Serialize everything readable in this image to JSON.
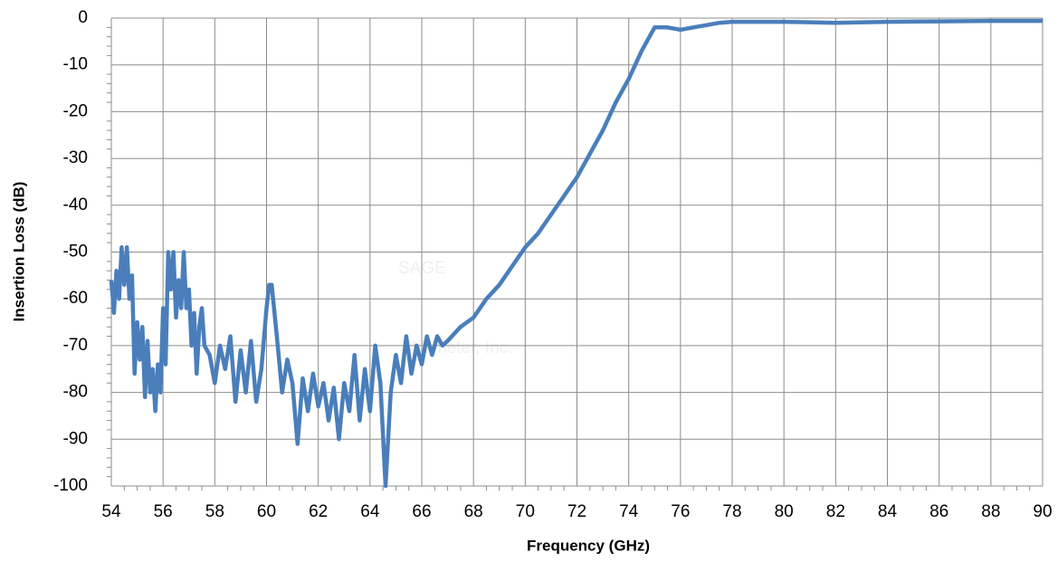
{
  "chart_data": {
    "type": "line",
    "xlabel": "Frequency (GHz)",
    "ylabel": "Insertion Loss (dB)",
    "watermark": [
      "SAGE",
      "Millimeter, Inc."
    ],
    "xlim": [
      54,
      90
    ],
    "xticks": [
      54,
      56,
      58,
      60,
      62,
      64,
      66,
      68,
      70,
      72,
      74,
      76,
      78,
      80,
      82,
      84,
      86,
      88,
      90
    ],
    "ylim": [
      -100,
      0
    ],
    "yticks": [
      0,
      -10,
      -20,
      -30,
      -40,
      -50,
      -60,
      -70,
      -80,
      -90,
      -100
    ],
    "grid": true,
    "series": [
      {
        "color": "#4a7ebb",
        "x": [
          54.0,
          54.1,
          54.2,
          54.3,
          54.4,
          54.5,
          54.6,
          54.7,
          54.8,
          54.9,
          55.0,
          55.1,
          55.2,
          55.3,
          55.4,
          55.5,
          55.6,
          55.7,
          55.8,
          55.9,
          56.0,
          56.1,
          56.2,
          56.3,
          56.4,
          56.5,
          56.6,
          56.7,
          56.8,
          56.9,
          57.0,
          57.1,
          57.2,
          57.3,
          57.4,
          57.5,
          57.6,
          57.8,
          58.0,
          58.2,
          58.4,
          58.6,
          58.8,
          59.0,
          59.2,
          59.4,
          59.6,
          59.8,
          60.0,
          60.1,
          60.2,
          60.4,
          60.6,
          60.8,
          61.0,
          61.2,
          61.4,
          61.6,
          61.8,
          62.0,
          62.2,
          62.4,
          62.6,
          62.8,
          63.0,
          63.2,
          63.4,
          63.6,
          63.8,
          64.0,
          64.2,
          64.4,
          64.6,
          64.8,
          65.0,
          65.2,
          65.4,
          65.6,
          65.8,
          66.0,
          66.2,
          66.4,
          66.6,
          66.8,
          67.0,
          67.5,
          68.0,
          68.5,
          69.0,
          69.5,
          70.0,
          70.5,
          71.0,
          71.5,
          72.0,
          72.5,
          73.0,
          73.5,
          74.0,
          74.5,
          75.0,
          75.5,
          76.0,
          76.5,
          77.0,
          77.5,
          78.0,
          80.0,
          82.0,
          84.0,
          86.0,
          88.0,
          90.0
        ],
        "values": [
          -56,
          -63,
          -54,
          -60,
          -49,
          -57,
          -49,
          -60,
          -55,
          -76,
          -65,
          -73,
          -66,
          -81,
          -69,
          -80,
          -75,
          -84,
          -74,
          -80,
          -62,
          -74,
          -50,
          -58,
          -50,
          -64,
          -56,
          -62,
          -50,
          -62,
          -58,
          -70,
          -63,
          -76,
          -66,
          -62,
          -70,
          -72,
          -78,
          -70,
          -75,
          -68,
          -82,
          -71,
          -80,
          -69,
          -82,
          -75,
          -62,
          -57,
          -57,
          -68,
          -80,
          -73,
          -78,
          -91,
          -77,
          -84,
          -76,
          -83,
          -78,
          -86,
          -79,
          -90,
          -78,
          -84,
          -72,
          -86,
          -75,
          -84,
          -70,
          -78,
          -100,
          -80,
          -72,
          -78,
          -68,
          -76,
          -70,
          -74,
          -68,
          -72,
          -68,
          -70,
          -69,
          -66,
          -64,
          -60,
          -57,
          -53,
          -49,
          -46,
          -42,
          -38,
          -34,
          -29,
          -24,
          -18,
          -13,
          -7,
          -2,
          -2,
          -2.5,
          -2,
          -1.5,
          -1,
          -0.8,
          -0.8,
          -1,
          -0.8,
          -0.7,
          -0.6,
          -0.6
        ]
      }
    ]
  }
}
